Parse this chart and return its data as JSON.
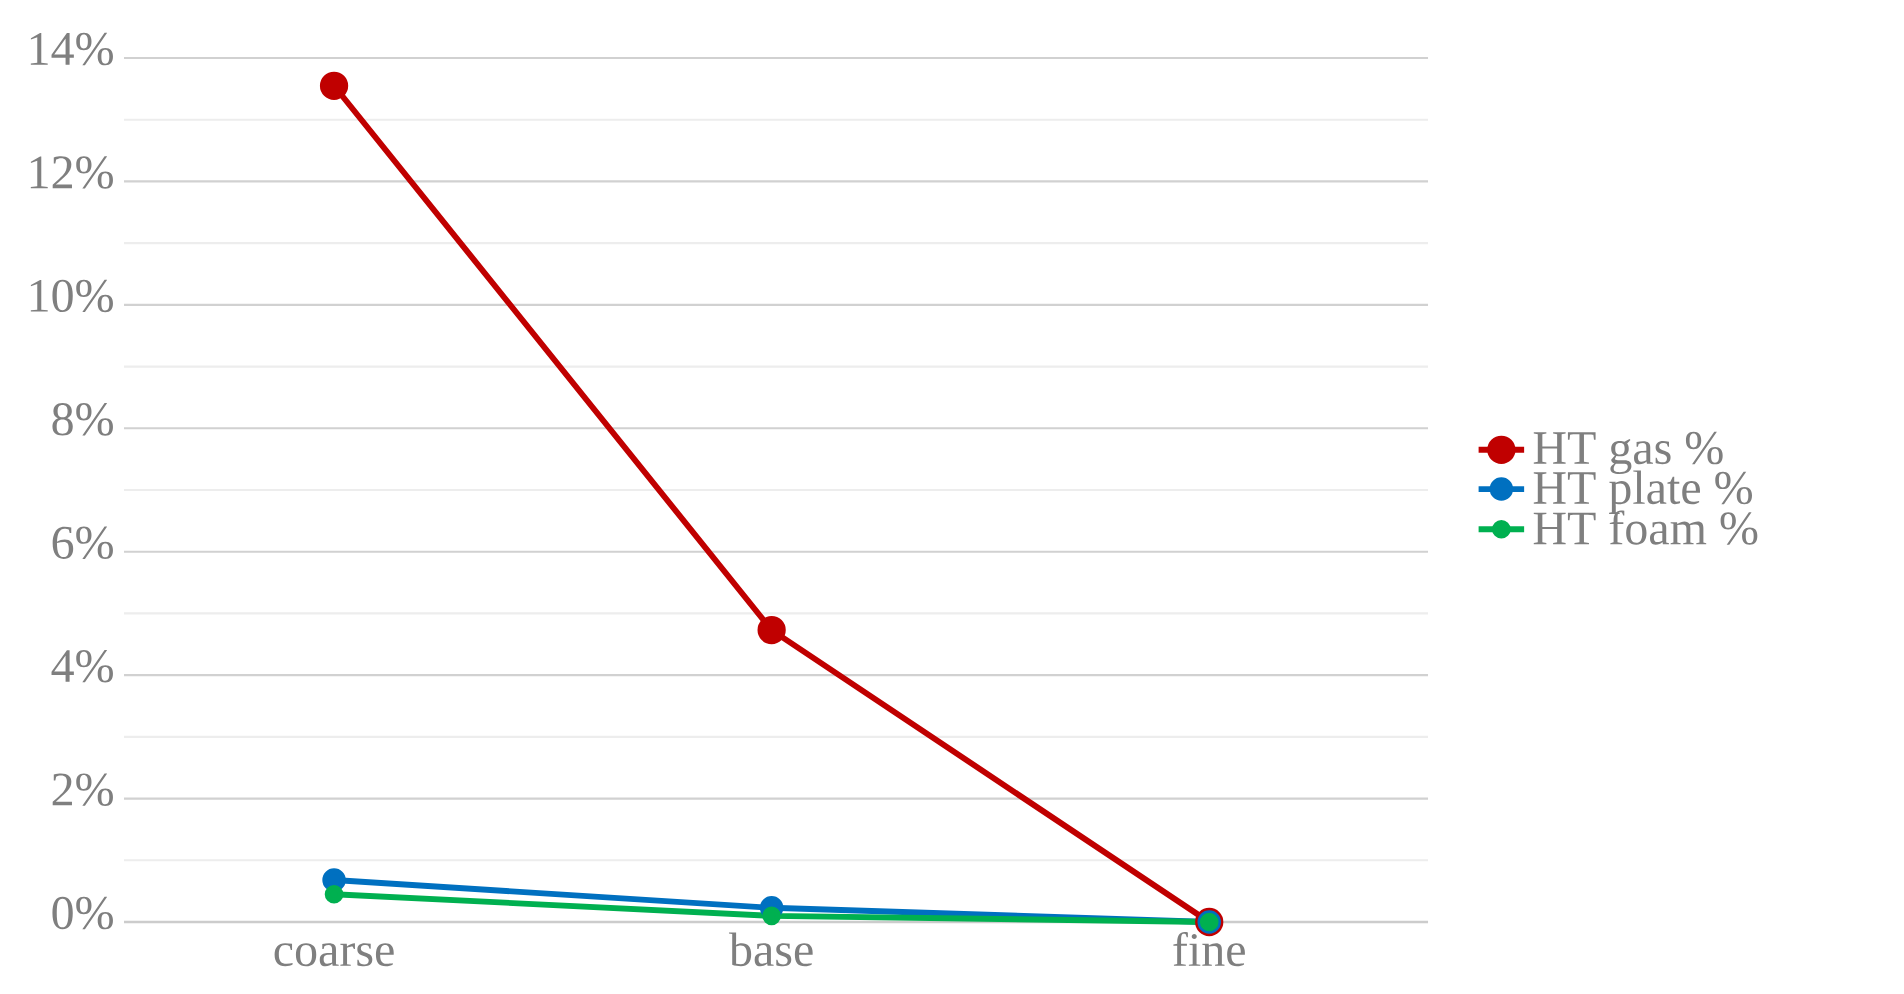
{
  "chart_data": {
    "type": "line",
    "categories": [
      "coarse",
      "base",
      "fine"
    ],
    "series": [
      {
        "name": "HT gas %",
        "color": "#c00000",
        "values": [
          13.55,
          4.73,
          0
        ]
      },
      {
        "name": "HT plate %",
        "color": "#0070c0",
        "values": [
          0.68,
          0.23,
          0
        ]
      },
      {
        "name": "HT foam %",
        "color": "#00b050",
        "values": [
          0.45,
          0.1,
          0
        ]
      }
    ],
    "ylim": [
      0,
      14
    ],
    "yticks": [
      {
        "value": 0,
        "label": "0%"
      },
      {
        "value": 2,
        "label": "2%"
      },
      {
        "value": 4,
        "label": "4%"
      },
      {
        "value": 6,
        "label": "6%"
      },
      {
        "value": 8,
        "label": "8%"
      },
      {
        "value": 10,
        "label": "10%"
      },
      {
        "value": 12,
        "label": "12%"
      },
      {
        "value": 14,
        "label": "14%"
      }
    ],
    "grid": "y",
    "legend": "right",
    "marker": "circle",
    "line_style": "solid"
  }
}
